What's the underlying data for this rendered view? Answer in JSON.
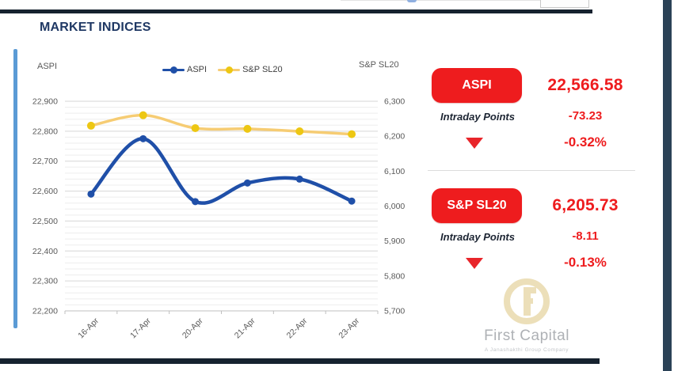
{
  "header": {
    "title": "MARKET INDICES"
  },
  "chart_data": {
    "type": "line",
    "categories": [
      "16-Apr",
      "17-Apr",
      "20-Apr",
      "21-Apr",
      "22-Apr",
      "23-Apr"
    ],
    "series": [
      {
        "name": "ASPI",
        "axis": "left",
        "color": "#1F4FA8",
        "marker_color": "#1F4FA8",
        "values": [
          22590,
          22775,
          22565,
          22627,
          22640,
          22566.58
        ]
      },
      {
        "name": "S&P SL20",
        "axis": "right",
        "color": "#F6CC73",
        "marker_color": "#EDC713",
        "values": [
          6230,
          6260,
          6223,
          6221,
          6214,
          6205.73
        ]
      }
    ],
    "left_axis": {
      "title": "ASPI",
      "min": 22200,
      "max": 22900,
      "major_step": 100,
      "minor_step": 20,
      "tick_labels": [
        "22,900",
        "22,800",
        "22,700",
        "22,600",
        "22,500",
        "22,400",
        "22,300",
        "22,200"
      ]
    },
    "right_axis": {
      "title": "S&P SL20",
      "min": 5700,
      "max": 6300,
      "major_step": 100,
      "tick_labels": [
        "6,300",
        "6,200",
        "6,100",
        "6,000",
        "5,900",
        "5,800",
        "5,700"
      ]
    },
    "legend": {
      "position": "top",
      "entries": [
        "ASPI",
        "S&P SL20"
      ]
    },
    "grid": "major+minor"
  },
  "panels": [
    {
      "label": "ASPI",
      "value": "22,566.58",
      "points_label": "Intraday Points",
      "points_change": "-73.23",
      "percent_change": "-0.32%",
      "direction": "down"
    },
    {
      "label": "S&P SL20",
      "value": "6,205.73",
      "points_label": "Intraday Points",
      "points_change": "-8.11",
      "percent_change": "-0.13%",
      "direction": "down"
    }
  ],
  "watermark": {
    "name": "First Capital",
    "tagline": "A Janashakthi Group Company"
  },
  "colors": {
    "accent_red": "#EE1C1E",
    "series_blue": "#1F4FA8",
    "series_yellow_marker": "#EDC713",
    "series_yellow_line": "#F6CC73",
    "title_navy": "#1F3864",
    "frame_navy": "#16222F",
    "accent_blue_bar": "#5B9BD5",
    "axis_text": "#595959"
  }
}
